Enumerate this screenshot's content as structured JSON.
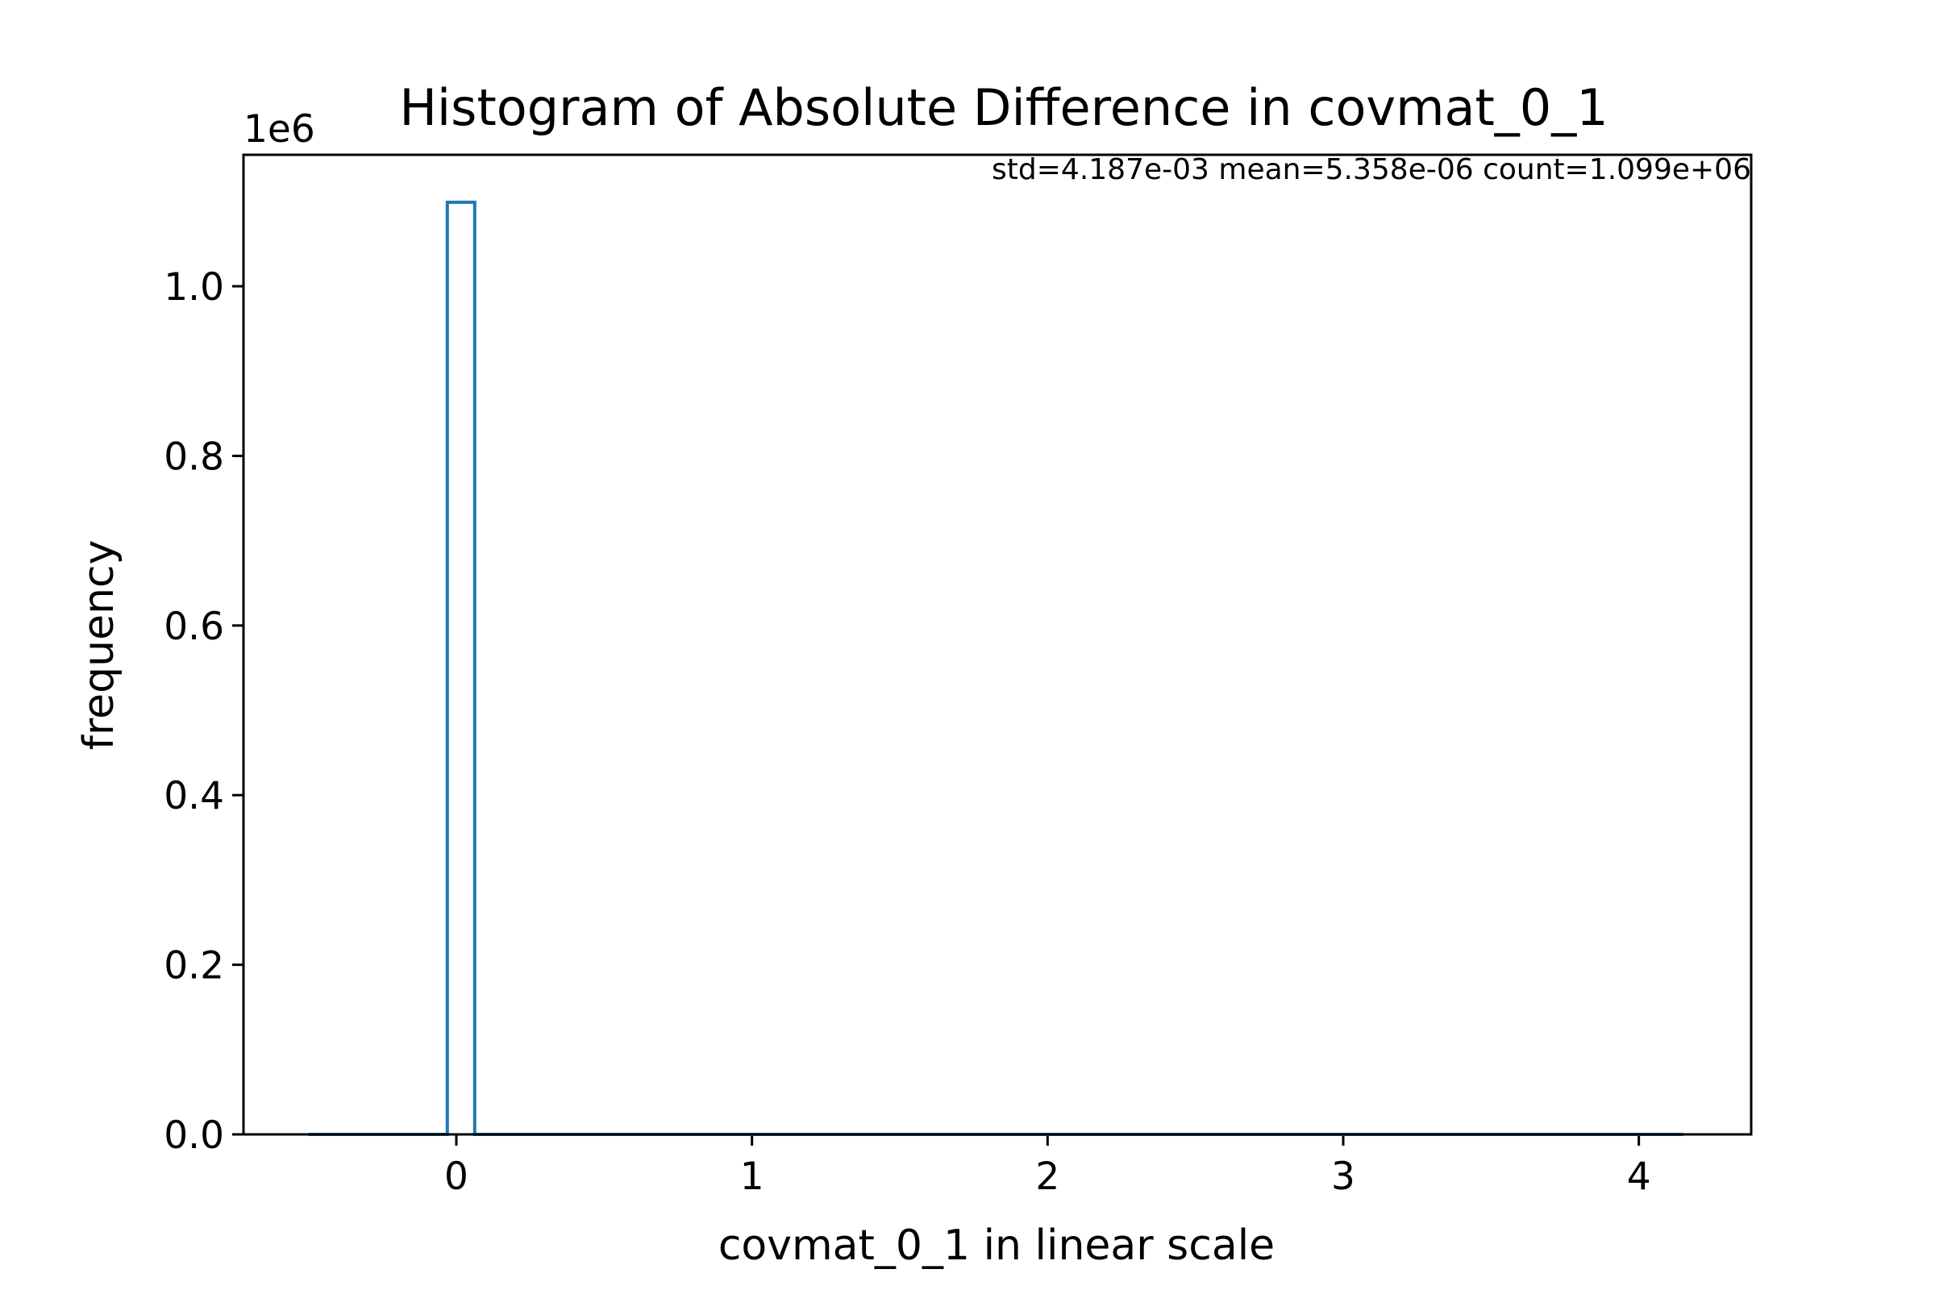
{
  "chart_data": {
    "type": "bar",
    "title": "Histogram of Absolute Difference in covmat_0_1",
    "xlabel": "covmat_0_1 in linear scale",
    "ylabel": "frequency",
    "offset_label": "1e6",
    "annotation": "std=4.187e-03 mean=5.358e-06 count=1.099e+06",
    "xlim": [
      -0.72,
      4.38
    ],
    "ylim": [
      0,
      1155000
    ],
    "x_ticks": [
      0,
      1,
      2,
      3,
      4
    ],
    "x_tick_labels": [
      "0",
      "1",
      "2",
      "3",
      "4"
    ],
    "y_ticks": [
      0,
      200000,
      400000,
      600000,
      800000,
      1000000
    ],
    "y_tick_labels": [
      "0.0",
      "0.2",
      "0.4",
      "0.6",
      "0.8",
      "1.0"
    ],
    "histtype": "step",
    "bins": [
      {
        "start": -0.5,
        "end": -0.0305,
        "count": 0
      },
      {
        "start": -0.0305,
        "end": 0.0621,
        "count": 1099000
      },
      {
        "start": 0.0621,
        "end": 4.15,
        "count": 0
      }
    ],
    "grid": false,
    "legend": "none",
    "series_color": "#1f77b4",
    "axis_color": "#000000"
  }
}
